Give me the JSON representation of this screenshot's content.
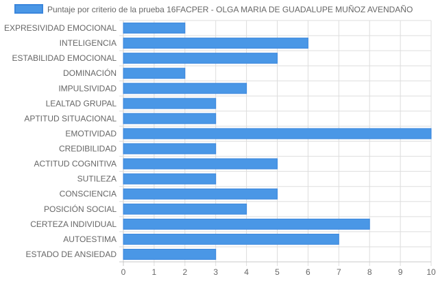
{
  "chart_data": {
    "type": "bar",
    "orientation": "horizontal",
    "legend_position": "top",
    "grid": true,
    "xlim": [
      0,
      10
    ],
    "x_ticks": [
      "0",
      "1",
      "2",
      "3",
      "4",
      "5",
      "6",
      "7",
      "8",
      "9",
      "10"
    ],
    "categories": [
      "EXPRESIVIDAD EMOCIONAL",
      "INTELIGENCIA",
      "ESTABILIDAD EMOCIONAL",
      "DOMINACIÓN",
      "IMPULSIVIDAD",
      "LEALTAD GRUPAL",
      "APTITUD SITUACIONAL",
      "EMOTIVIDAD",
      "CREDIBILIDAD",
      "ACTITUD COGNITIVA",
      "SUTILEZA",
      "CONSCIENCIA",
      "POSICIÓN SOCIAL",
      "CERTEZA INDIVIDUAL",
      "AUTOESTIMA",
      "ESTADO DE ANSIEDAD"
    ],
    "series": [
      {
        "name": "Puntaje por criterio de la prueba 16FACPER - OLGA MARIA DE GUADALUPE MUÑOZ AVENDAÑO",
        "values": [
          2,
          6,
          5,
          2,
          4,
          3,
          3,
          10,
          3,
          5,
          3,
          5,
          4,
          8,
          7,
          3
        ]
      }
    ],
    "colors": {
      "bar_fill": "#4a97e6",
      "bar_stroke": "#3a86dc",
      "grid": "#dddddd",
      "axis": "#c8c8c8",
      "text": "#666666"
    }
  }
}
